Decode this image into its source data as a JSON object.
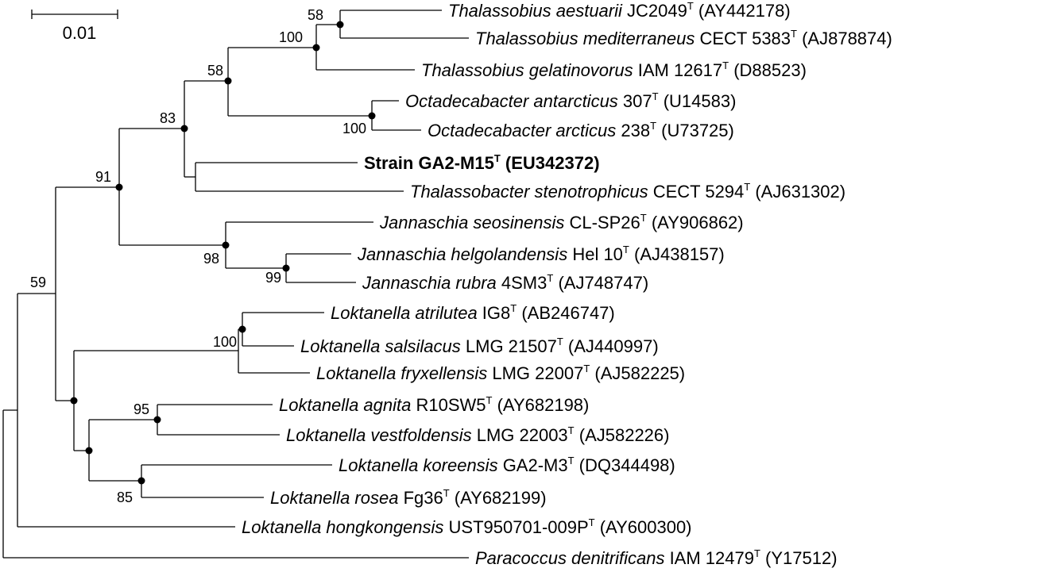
{
  "scale_bar": {
    "label": "0.01"
  },
  "taxa": [
    {
      "genus": "Thalassobius",
      "species": "aestuarii",
      "strain": "JC2049",
      "type": "T",
      "accession": "(AY442178)"
    },
    {
      "genus": "Thalassobius",
      "species": "mediterraneus",
      "strain": "CECT 5383",
      "type": "T",
      "accession": "(AJ878874)"
    },
    {
      "genus": "Thalassobius",
      "species": "gelatinovorus",
      "strain": "IAM 12617",
      "type": "T",
      "accession": "(D88523)"
    },
    {
      "genus": "Octadecabacter",
      "species": "antarcticus",
      "strain": "307",
      "type": "T",
      "accession": "(U14583)"
    },
    {
      "genus": "Octadecabacter",
      "species": "arcticus",
      "strain": "238",
      "type": "T",
      "accession": "(U73725)"
    },
    {
      "bold_name": "Strain GA2-M15",
      "type": "T",
      "accession": "(EU342372)"
    },
    {
      "genus": "Thalassobacter",
      "species": "stenotrophicus",
      "strain": "CECT 5294",
      "type": "T",
      "accession": "(AJ631302)"
    },
    {
      "genus": "Jannaschia",
      "species": "seosinensis",
      "strain": "CL-SP26",
      "type": "T",
      "accession": "(AY906862)"
    },
    {
      "genus": "Jannaschia",
      "species": "helgolandensis",
      "strain": "Hel 10",
      "type": "T",
      "accession": "(AJ438157)"
    },
    {
      "genus": "Jannaschia",
      "species": "rubra",
      "strain": "4SM3",
      "type": "T",
      "accession": "(AJ748747)"
    },
    {
      "genus": "Loktanella",
      "species": "atrilutea",
      "strain": "IG8",
      "type": "T",
      "accession": "(AB246747)"
    },
    {
      "genus": "Loktanella",
      "species": "salsilacus",
      "strain": "LMG 21507",
      "type": "T",
      "accession": "(AJ440997)"
    },
    {
      "genus": "Loktanella",
      "species": "fryxellensis",
      "strain": "LMG 22007",
      "type": "T",
      "accession": "(AJ582225)"
    },
    {
      "genus": "Loktanella",
      "species": "agnita",
      "strain": "R10SW5",
      "type": "T",
      "accession": "(AY682198)"
    },
    {
      "genus": "Loktanella",
      "species": "vestfoldensis",
      "strain": "LMG 22003",
      "type": "T",
      "accession": "(AJ582226)"
    },
    {
      "genus": "Loktanella",
      "species": "koreensis",
      "strain": "GA2-M3",
      "type": "T",
      "accession": "(DQ344498)"
    },
    {
      "genus": "Loktanella",
      "species": "rosea",
      "strain": "Fg36",
      "type": "T",
      "accession": "(AY682199)"
    },
    {
      "genus": "Loktanella",
      "species": "hongkongensis",
      "strain": "UST950701-009P",
      "type": "T",
      "accession": "(AY600300)"
    },
    {
      "genus": "Paracoccus",
      "species": "denitrificans",
      "strain": "IAM 12479",
      "type": "T",
      "accession": "(Y17512)"
    }
  ],
  "bootstrap": [
    "58",
    "100",
    "58",
    "100",
    "83",
    "91",
    "98",
    "99",
    "100",
    "95",
    "85",
    "59"
  ]
}
